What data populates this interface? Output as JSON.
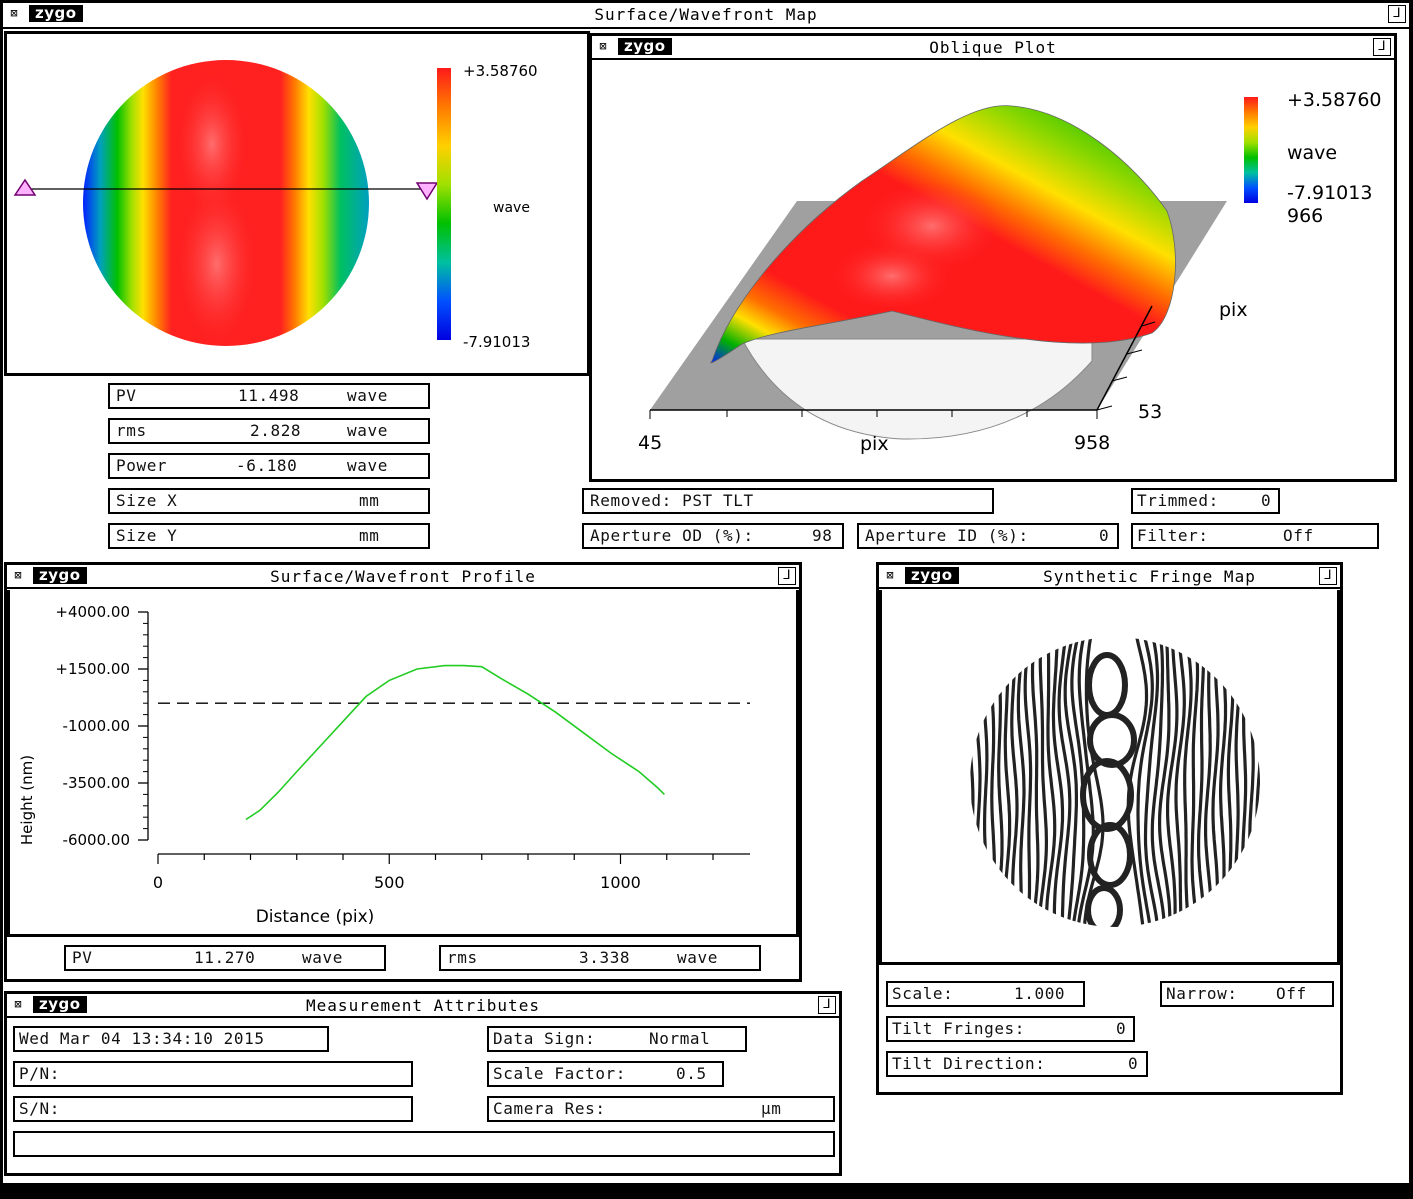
{
  "main_window": {
    "title": "Surface/Wavefront Map",
    "logo": "zygo"
  },
  "surface_map": {
    "scale_max": "+3.58760",
    "scale_min": "-7.91013",
    "scale_unit": "wave",
    "colorbar": [
      "#ff1a1a",
      "#ff7a00",
      "#ffd000",
      "#a0e000",
      "#00c000",
      "#00c0a0",
      "#0050ff",
      "#0000e0"
    ]
  },
  "stats": {
    "pv": {
      "label": "PV",
      "value": "11.498",
      "unit": "wave"
    },
    "rms": {
      "label": "rms",
      "value": "2.828",
      "unit": "wave"
    },
    "power": {
      "label": "Power",
      "value": "-6.180",
      "unit": "wave"
    },
    "size_x": {
      "label": "Size X",
      "value": "",
      "unit": "mm"
    },
    "size_y": {
      "label": "Size Y",
      "value": "",
      "unit": "mm"
    }
  },
  "oblique": {
    "title": "Oblique Plot",
    "logo": "zygo",
    "scale_max": "+3.58760",
    "scale_unit": "wave",
    "scale_min": "-7.91013",
    "y_max": "966",
    "y_label": "pix",
    "y_min": "53",
    "x_min": "45",
    "x_label": "pix",
    "x_max": "958"
  },
  "settings": {
    "removed": "Removed: PST TLT",
    "trimmed_label": "Trimmed:",
    "trimmed_value": "0",
    "aperture_od_label": "Aperture OD (%):",
    "aperture_od_value": "98",
    "aperture_id_label": "Aperture ID (%):",
    "aperture_id_value": "0",
    "filter_label": "Filter:",
    "filter_value": "Off"
  },
  "profile": {
    "title": "Surface/Wavefront Profile",
    "logo": "zygo",
    "pv": {
      "label": "PV",
      "value": "11.270",
      "unit": "wave"
    },
    "rms": {
      "label": "rms",
      "value": "3.338",
      "unit": "wave"
    }
  },
  "chart_data": {
    "type": "line",
    "title": "",
    "xlabel": "Distance (pix)",
    "ylabel": "Height (nm)",
    "xlim": [
      0,
      1280
    ],
    "ylim": [
      -6000,
      4000
    ],
    "x_ticks": [
      0,
      500,
      1000
    ],
    "x_tick_labels": [
      "0",
      "500",
      "1000"
    ],
    "y_ticks": [
      4000,
      1500,
      -1000,
      -3500,
      -6000
    ],
    "y_tick_labels": [
      "+4000.00",
      "+1500.00",
      "-1000.00",
      "-3500.00",
      "-6000.00"
    ],
    "reference_line": 0,
    "series": [
      {
        "color": "#22cc22",
        "x": [
          190,
          220,
          260,
          300,
          350,
          400,
          450,
          500,
          560,
          620,
          660,
          700,
          740,
          800,
          860,
          920,
          980,
          1040,
          1080,
          1095
        ],
        "y": [
          -5100,
          -4700,
          -3900,
          -3000,
          -1900,
          -800,
          300,
          1000,
          1500,
          1650,
          1650,
          1600,
          1100,
          400,
          -400,
          -1300,
          -2200,
          -3000,
          -3700,
          -4000
        ]
      }
    ]
  },
  "fringe": {
    "title": "Synthetic Fringe Map",
    "logo": "zygo",
    "scale_label": "Scale:",
    "scale_value": "1.000",
    "narrow_label": "Narrow:",
    "narrow_value": "Off",
    "tilt_fringes_label": "Tilt Fringes:",
    "tilt_fringes_value": "0",
    "tilt_direction_label": "Tilt Direction:",
    "tilt_direction_value": "0"
  },
  "attributes": {
    "title": "Measurement Attributes",
    "logo": "zygo",
    "date": "Wed Mar 04 13:34:10 2015",
    "pn": "P/N:",
    "sn": "S/N:",
    "note": "",
    "data_sign_label": "Data Sign:",
    "data_sign_value": "Normal",
    "scale_factor_label": "Scale Factor:",
    "scale_factor_value": "0.5",
    "camera_res_label": "Camera Res:",
    "camera_res_unit": "µm"
  }
}
